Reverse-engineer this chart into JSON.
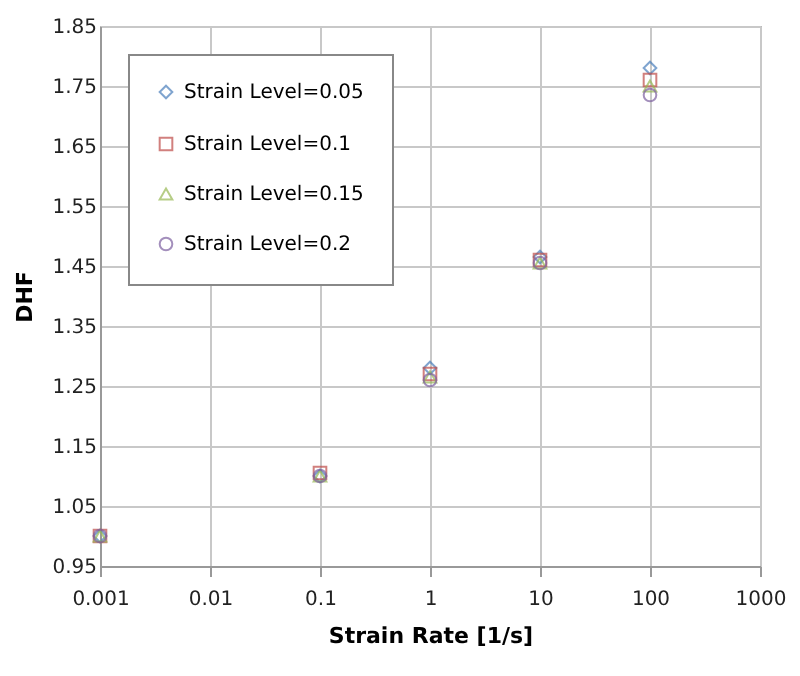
{
  "chart_data": {
    "type": "scatter",
    "xlabel": "Strain Rate [1/s]",
    "ylabel": "DHF",
    "log": "x",
    "grid": true,
    "legend": "top left",
    "x": [
      0.001,
      0.1,
      1,
      10,
      100
    ],
    "xlim": [
      0.001,
      1000
    ],
    "xticks": [
      0.001,
      0.01,
      0.1,
      1,
      10,
      100,
      1000
    ],
    "ylim": [
      0.95,
      1.85
    ],
    "yticks": [
      0.95,
      1.05,
      1.15,
      1.25,
      1.35,
      1.45,
      1.55,
      1.65,
      1.75,
      1.85
    ],
    "series": [
      {
        "name": "Strain Level=0.05",
        "color": "#4a7ebb",
        "marker": "diamond",
        "values": [
          1.0,
          1.1,
          1.28,
          1.465,
          1.78
        ]
      },
      {
        "name": "Strain Level=0.1",
        "color": "#be4b48",
        "marker": "square",
        "values": [
          1.0,
          1.105,
          1.27,
          1.46,
          1.76
        ]
      },
      {
        "name": "Strain Level=0.15",
        "color": "#98b954",
        "marker": "triangle",
        "values": [
          1.0,
          1.1,
          1.265,
          1.455,
          1.75
        ]
      },
      {
        "name": "Strain Level=0.2",
        "color": "#7d60a0",
        "marker": "circle",
        "values": [
          1.0,
          1.1,
          1.26,
          1.455,
          1.735
        ]
      }
    ]
  }
}
